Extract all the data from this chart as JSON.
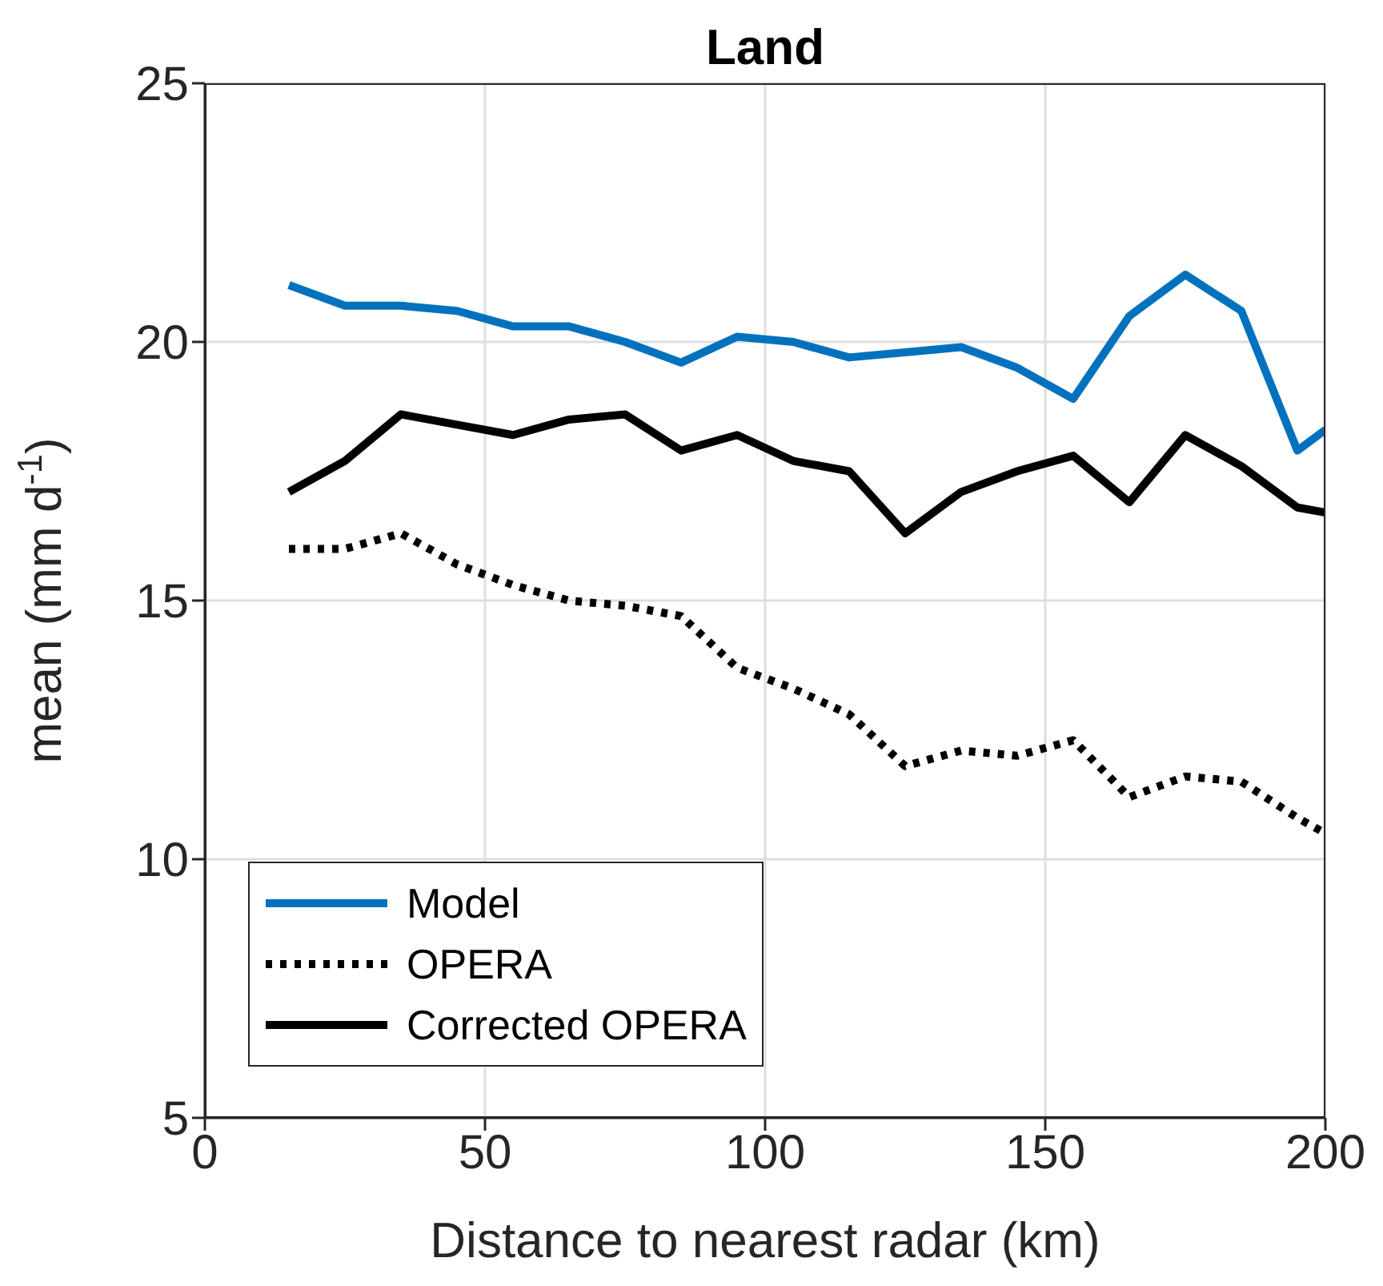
{
  "chart_data": {
    "type": "line",
    "title": "Land",
    "xlabel": "Distance to nearest radar (km)",
    "ylabel": "mean (mm d$^{-1}$)",
    "x": [
      15,
      25,
      35,
      45,
      55,
      65,
      75,
      85,
      95,
      105,
      115,
      125,
      135,
      145,
      155,
      165,
      175,
      185,
      195,
      200
    ],
    "series": [
      {
        "name": "Model",
        "color": "#0072bd",
        "line_style": "solid",
        "values": [
          21.1,
          20.7,
          20.7,
          20.6,
          20.3,
          20.3,
          20.0,
          19.6,
          20.1,
          20.0,
          19.7,
          19.8,
          19.9,
          19.5,
          18.9,
          20.5,
          21.3,
          20.6,
          17.9,
          18.3
        ]
      },
      {
        "name": "OPERA",
        "color": "#000000",
        "line_style": "dotted",
        "values": [
          16.0,
          16.0,
          16.3,
          15.7,
          15.3,
          15.0,
          14.9,
          14.7,
          13.7,
          13.3,
          12.8,
          11.8,
          12.1,
          12.0,
          12.3,
          11.2,
          11.6,
          11.5,
          10.8,
          10.5
        ]
      },
      {
        "name": "Corrected OPERA",
        "color": "#000000",
        "line_style": "solid",
        "values": [
          17.1,
          17.7,
          18.6,
          18.4,
          18.2,
          18.5,
          18.6,
          17.9,
          18.2,
          17.7,
          17.5,
          16.3,
          17.1,
          17.5,
          17.8,
          16.9,
          18.2,
          17.6,
          16.8,
          16.7
        ]
      }
    ],
    "xlim": [
      0,
      200
    ],
    "xticks": [
      0,
      50,
      100,
      150,
      200
    ],
    "ylim": [
      5,
      25
    ],
    "yticks": [
      5,
      10,
      15,
      20,
      25
    ],
    "grid": true,
    "legend": "bottom left",
    "marker": "none"
  }
}
